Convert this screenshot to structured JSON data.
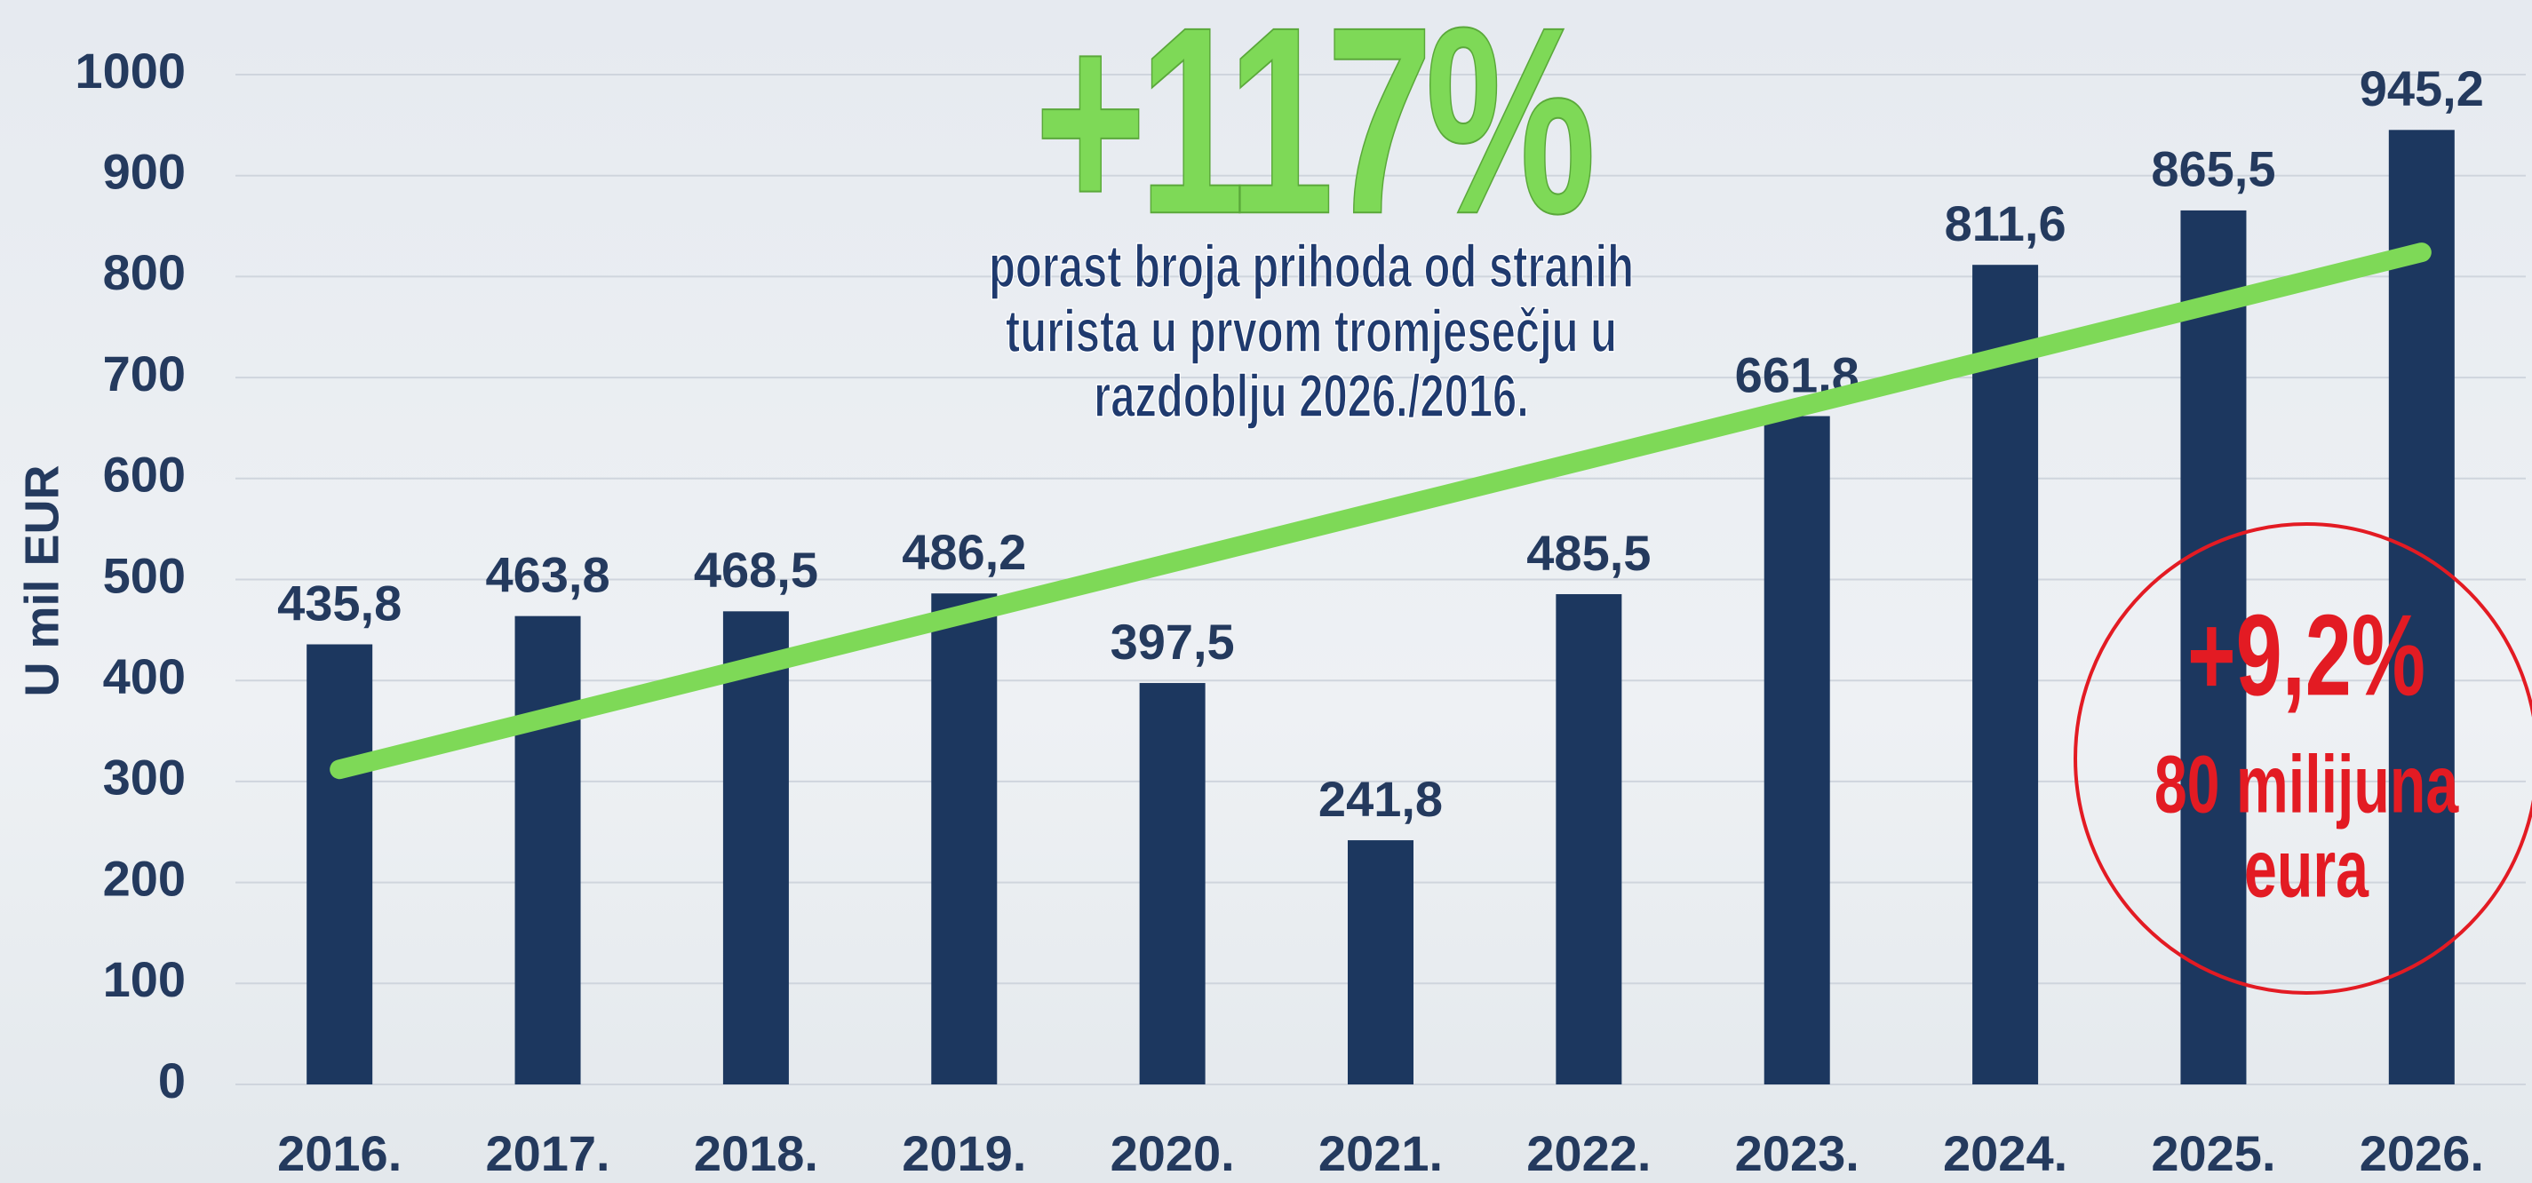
{
  "chart_data": {
    "type": "bar",
    "y_label": "U mil EUR",
    "categories": [
      "2016.",
      "2017.",
      "2018.",
      "2019.",
      "2020.",
      "2021.",
      "2022.",
      "2023.",
      "2024.",
      "2025.",
      "2026."
    ],
    "values": [
      435.8,
      463.8,
      468.5,
      486.2,
      397.5,
      241.8,
      485.5,
      661.8,
      811.6,
      865.5,
      945.2
    ],
    "value_labels": [
      "435,8",
      "463,8",
      "468,5",
      "486,2",
      "397,5",
      "241,8",
      "485,5",
      "661,8",
      "811,6",
      "865,5",
      "945,2"
    ],
    "color": "#1c375f",
    "ylim": [
      0,
      1000
    ],
    "yticks": [
      0,
      100,
      200,
      300,
      400,
      500,
      600,
      700,
      800,
      900,
      1000
    ],
    "grid": true,
    "trend": {
      "color": "#7ed957",
      "start": 312,
      "end": 824
    },
    "headline": "+117%",
    "headline_color": "#7ed957",
    "headline_text": [
      "porast broja prihoda od stranih",
      "turista u prvom tromjesečju u",
      "razdoblju 2026./2016."
    ],
    "callout": {
      "color": "#e31b23",
      "lines": [
        "+9,2%",
        "80 milijuna",
        "eura"
      ]
    }
  }
}
